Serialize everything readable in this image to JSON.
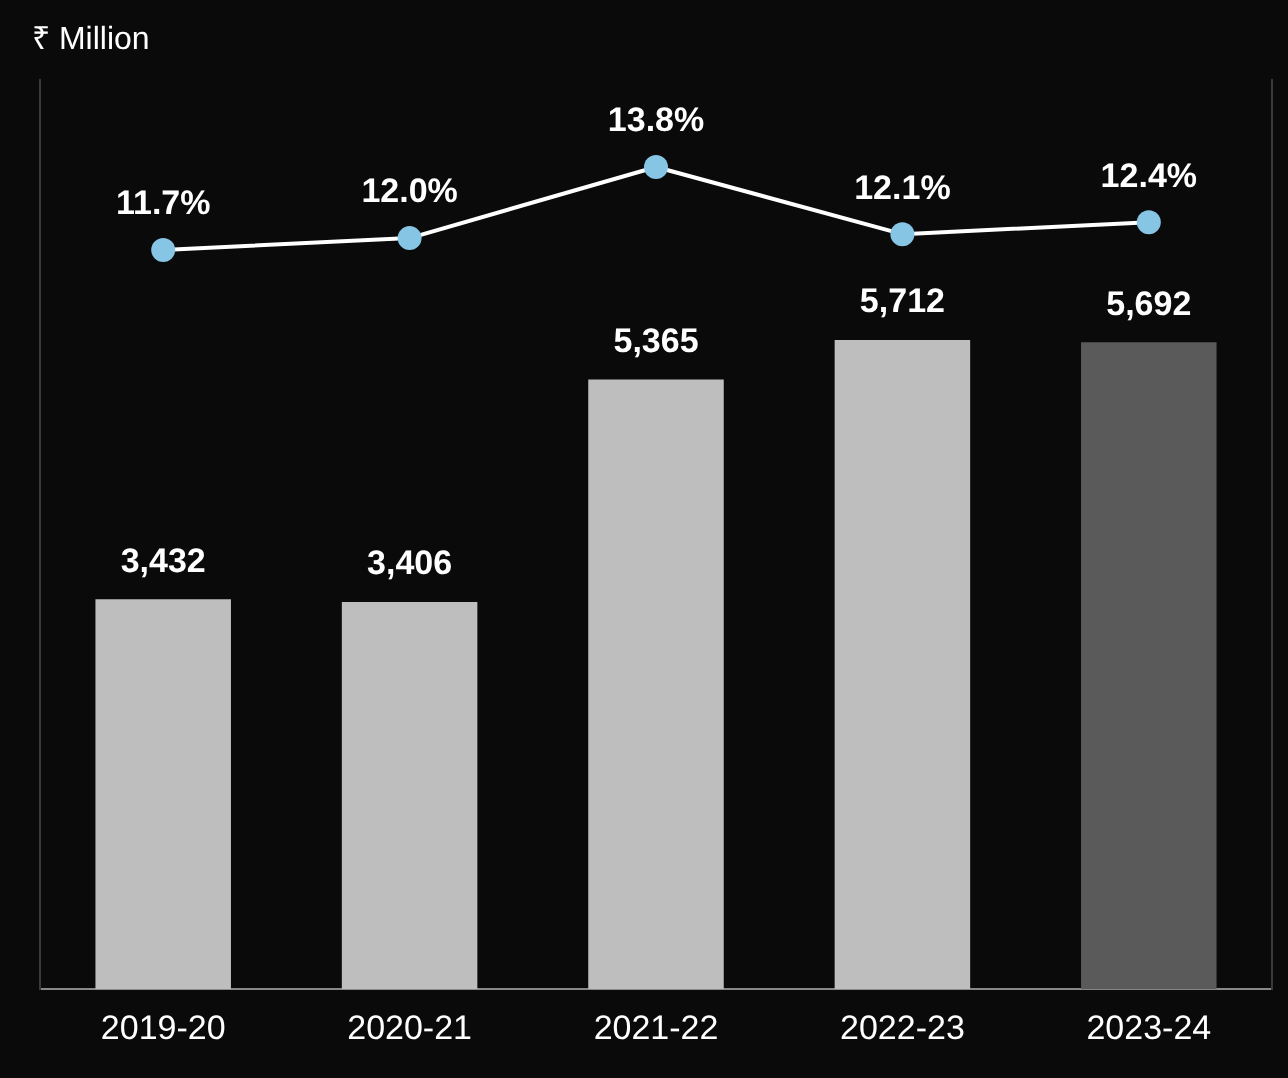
{
  "chart_data": {
    "type": "bar",
    "annotations": [
      "₹ Million"
    ],
    "categories": [
      "2019-20",
      "2020-21",
      "2021-22",
      "2022-23",
      "2023-24"
    ],
    "series": [
      {
        "colors": [
          "#bdbebd",
          "#bdbebd",
          "#bdbebd",
          "#bdbebd",
          "#5a5a5a"
        ],
        "values": [
          3432,
          3406,
          5365,
          5712,
          5692
        ],
        "value_labels": [
          "3,432",
          "3,406",
          "5,365",
          "5,712",
          "5,692"
        ]
      },
      {
        "type": "line",
        "axis": "y2",
        "color": "#ffffff",
        "colors": [
          "#86c5e4",
          "#86c5e4",
          "#86c5e4",
          "#86c5e4",
          "#86c5e4"
        ],
        "values": [
          11.7,
          12.0,
          13.8,
          12.1,
          12.4
        ],
        "value_labels": [
          "11.7%",
          "12.0%",
          "13.8%",
          "12.1%",
          "12.4%"
        ]
      }
    ],
    "ylim": [
      0,
      8000
    ],
    "y2lim": [
      -7,
      16
    ],
    "tick_labels": "x",
    "grid": false,
    "legend": false,
    "marker": "circle",
    "line_style": "solid"
  }
}
